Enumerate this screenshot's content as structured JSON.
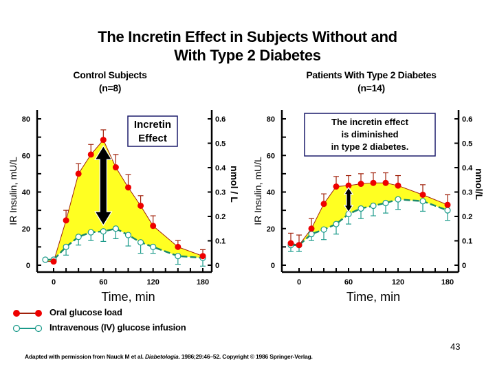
{
  "title_line1": "The Incretin Effect in Subjects Without and",
  "title_line2": "With Type 2 Diabetes",
  "legend": {
    "oral": "Oral glucose load",
    "iv": "Intravenous (IV) glucose infusion"
  },
  "footnote": {
    "prefix": "Adapted with permission from Nauck M et al. ",
    "journal": "Diabetologia",
    "suffix": ". 1986;29:46–52. Copyright © 1986 Springer-Verlag."
  },
  "page_number": "43",
  "colors": {
    "oral": "#ee0000",
    "oral_line": "#a0200a",
    "iv": "#1a9a8a",
    "iv_line": "#1c8a6a",
    "fill": "#ffff22",
    "box_border": "#1a1a6a"
  },
  "chart_data": [
    {
      "type": "line",
      "panel": "left",
      "subtitle_line1": "Control Subjects",
      "subtitle_line2": "(n=8)",
      "annotation": [
        "Incretin",
        "Effect"
      ],
      "xlabel": "Time, min",
      "ylabel": "IR Insulin, mU/L",
      "ylabel_right": "nmol / L",
      "xlim": [
        -15,
        190
      ],
      "ylim": [
        0,
        80
      ],
      "ylim_right": [
        0,
        0.6
      ],
      "x_ticks": [
        0,
        60,
        120,
        180
      ],
      "y_ticks": [
        0,
        20,
        40,
        60,
        80
      ],
      "y_ticks_right": [
        "0",
        "0.1",
        "0.2",
        "0.3",
        "0.4",
        "0.5",
        "0.6"
      ],
      "x": [
        -10,
        0,
        15,
        30,
        45,
        60,
        75,
        90,
        105,
        120,
        150,
        180
      ],
      "series": [
        {
          "name": "Oral glucose load",
          "values": [
            2,
            2,
            24.5,
            50,
            60.5,
            68.5,
            53.5,
            42.5,
            32.5,
            21.5,
            10,
            5
          ],
          "error": [
            0,
            0,
            5.5,
            5.5,
            5.5,
            5.5,
            7,
            7,
            5.5,
            5.5,
            3.5,
            3.5
          ]
        },
        {
          "name": "Intravenous (IV) glucose infusion",
          "values": [
            3,
            3,
            10,
            15.5,
            18,
            18.5,
            20,
            16.5,
            12.5,
            10,
            5,
            4
          ],
          "error": [
            0,
            0,
            4.5,
            4.5,
            4.5,
            5.5,
            5.5,
            6,
            6,
            3.5,
            4.5,
            4.5
          ]
        }
      ]
    },
    {
      "type": "line",
      "panel": "right",
      "subtitle_line1": "Patients With Type 2 Diabetes",
      "subtitle_line2": "(n=14)",
      "annotation": [
        "The incretin effect",
        "is diminished",
        "in type 2 diabetes."
      ],
      "xlabel": "Time, min",
      "ylabel": "IR Insulin, mU/L",
      "ylabel_right": "nmol/L",
      "xlim": [
        -15,
        190
      ],
      "ylim": [
        0,
        80
      ],
      "ylim_right": [
        0,
        0.6
      ],
      "x_ticks": [
        0,
        60,
        120,
        180
      ],
      "y_ticks": [
        0,
        20,
        40,
        60,
        80
      ],
      "y_ticks_right": [
        "0",
        "0.1",
        "0.2",
        "0.3",
        "0.4",
        "0.5",
        "0.6"
      ],
      "x": [
        -10,
        0,
        15,
        30,
        45,
        60,
        75,
        90,
        105,
        120,
        150,
        180
      ],
      "series": [
        {
          "name": "Oral glucose load",
          "values": [
            12,
            11,
            20,
            33.5,
            43,
            43.5,
            44.5,
            45,
            45,
            43.5,
            38.5,
            33
          ],
          "error": [
            5.5,
            5.5,
            5.5,
            5.5,
            5.5,
            5.5,
            5.5,
            5.5,
            5.5,
            5.5,
            5.5,
            5.5
          ]
        },
        {
          "name": "Intravenous (IV) glucose infusion",
          "values": [
            11,
            11,
            17,
            19.5,
            22.5,
            28,
            31,
            32.5,
            34,
            36,
            35,
            30
          ],
          "error": [
            3.5,
            3.5,
            3.5,
            5.5,
            5.5,
            5.5,
            5.5,
            5.5,
            5.5,
            5.5,
            5.5,
            5.5
          ]
        }
      ]
    }
  ]
}
